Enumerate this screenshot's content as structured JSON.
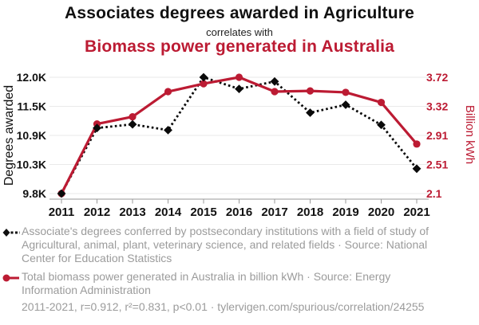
{
  "header": {
    "title": "Associates degrees awarded in Agriculture",
    "subtitle": "correlates with",
    "title2": "Biomass power generated in Australia"
  },
  "colors": {
    "accent_red": "#bc1b33",
    "series_black": "#0a0a0a",
    "grid": "#eaeaea",
    "axis": "#999999",
    "legend_gray": "#9b9b9b",
    "ink": "#111111"
  },
  "chart_data": {
    "type": "line",
    "x": [
      2011,
      2012,
      2013,
      2014,
      2015,
      2016,
      2017,
      2018,
      2019,
      2020,
      2021
    ],
    "xlabel": "",
    "ylabel_left": "Degrees awarded",
    "ylabel_right": "Billion kWh",
    "yticks_left": [
      "12.0K",
      "11.5K",
      "10.9K",
      "10.3K",
      "9.8K"
    ],
    "yticks_right": [
      "3.72",
      "3.32",
      "2.91",
      "2.51",
      "2.1"
    ],
    "ylim_left": [
      9800,
      12000
    ],
    "ylim_right": [
      2.1,
      3.72
    ],
    "grid": true,
    "legend_position": "bottom",
    "series": [
      {
        "name": "Associate's degrees in Agriculture and related fields",
        "axis": "left",
        "marker": "diamond",
        "line_style": "dashed",
        "color": "#0a0a0a",
        "values": [
          9800,
          11040,
          11110,
          11000,
          12000,
          11780,
          11920,
          11330,
          11480,
          11100,
          10270
        ]
      },
      {
        "name": "Total biomass power generated in Australia",
        "axis": "right",
        "marker": "circle",
        "line_style": "solid",
        "color": "#bc1b33",
        "values": [
          2.1,
          3.07,
          3.17,
          3.52,
          3.63,
          3.72,
          3.52,
          3.53,
          3.51,
          3.37,
          2.79
        ]
      }
    ]
  },
  "legend": {
    "series1_label": "Associate's degrees conferred by postsecondary institutions with a field of study of Agricultural, animal, plant, veterinary science, and related fields · Source: National Center for Education Statistics",
    "series2_label": "Total biomass power generated in Australia in billion kWh · Source: Energy Information Administration",
    "stats": "2011-2021, r=0.912, r²=0.831, p<0.01 · tylervigen.com/spurious/correlation/24255"
  }
}
